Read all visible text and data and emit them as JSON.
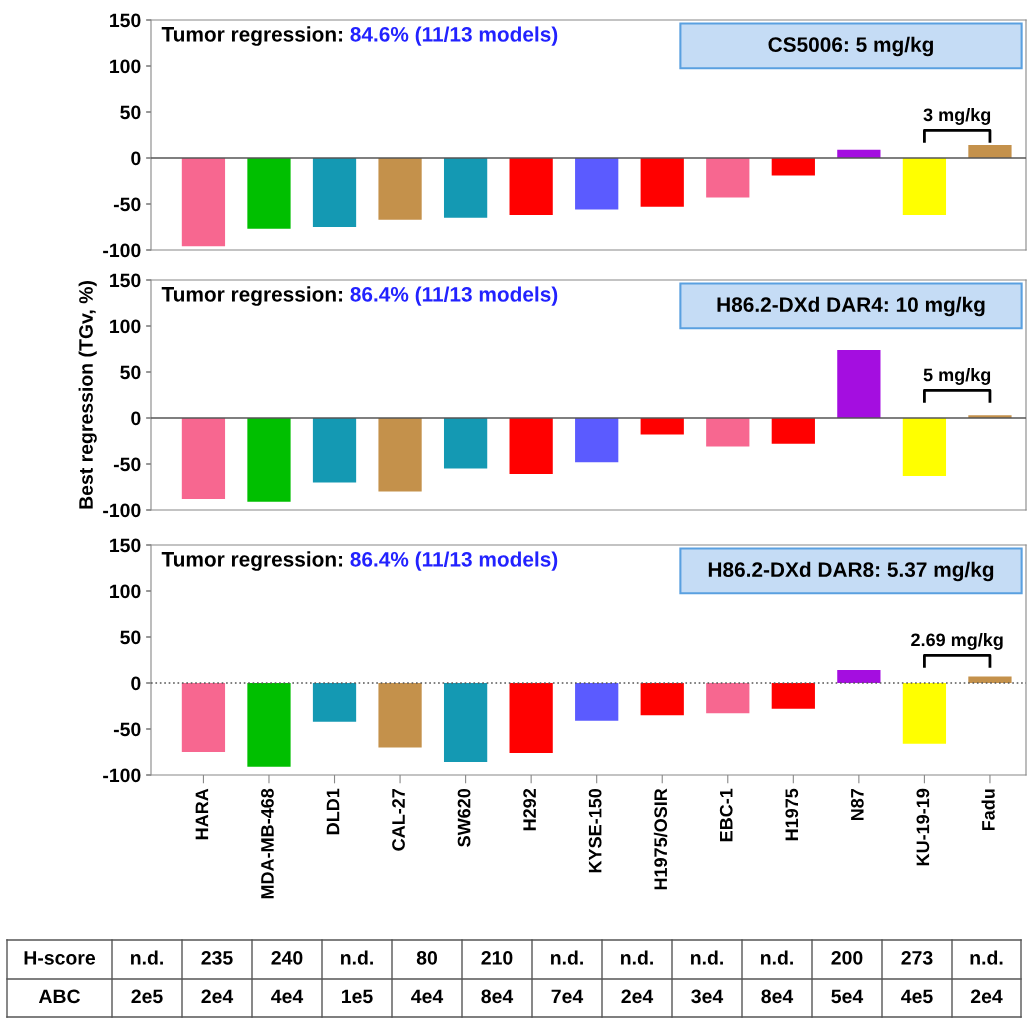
{
  "chart_data": [
    {
      "type": "bar",
      "categories": [
        null,
        null,
        null,
        null,
        null,
        null,
        null,
        null,
        null,
        null,
        null,
        null,
        null
      ],
      "values": [
        -96,
        -77,
        -75,
        -67,
        -65,
        -62,
        -56,
        -53,
        -43,
        -19,
        9,
        -62,
        14
      ],
      "colors": [
        "#f76790",
        "#00bf00",
        "#1499b3",
        "#c4914b",
        "#1499b3",
        "#ff0000",
        "#5b5bff",
        "#ff0000",
        "#f76790",
        "#ff0000",
        "#a40ee0",
        "#ffff00",
        "#c4914b"
      ],
      "ylim": [
        -100,
        150
      ],
      "yticks": [
        -100,
        -50,
        0,
        50,
        100,
        150
      ],
      "tick_labels": "y",
      "ref_lines": [
        {
          "axis": "y",
          "value": 0,
          "color": "#555555",
          "line_style": "solid"
        }
      ],
      "annotations": [
        "Tumor regression: 84.6% (11/13 models)",
        "CS5006: 5 mg/kg",
        "3 mg/kg"
      ]
    },
    {
      "type": "bar",
      "categories": [
        null,
        null,
        null,
        null,
        null,
        null,
        null,
        null,
        null,
        null,
        null,
        null,
        null
      ],
      "values": [
        -88,
        -91,
        -70,
        -80,
        -55,
        -61,
        -48,
        -18,
        -31,
        -28,
        74,
        -63,
        3
      ],
      "colors": [
        "#f76790",
        "#00bf00",
        "#1499b3",
        "#c4914b",
        "#1499b3",
        "#ff0000",
        "#5b5bff",
        "#ff0000",
        "#f76790",
        "#ff0000",
        "#a40ee0",
        "#ffff00",
        "#c4914b"
      ],
      "ylim": [
        -100,
        150
      ],
      "yticks": [
        -100,
        -50,
        0,
        50,
        100,
        150
      ],
      "tick_labels": "y",
      "ylabel": "Best regression (TGv, %)",
      "ref_lines": [
        {
          "axis": "y",
          "value": 0,
          "color": "#555555",
          "line_style": "solid"
        }
      ],
      "annotations": [
        "Tumor regression: 86.4% (11/13 models)",
        "H86.2-DXd DAR4: 10 mg/kg",
        "5 mg/kg"
      ]
    },
    {
      "type": "bar",
      "categories": [
        "HARA",
        "MDA-MB-468",
        "DLD1",
        "CAL-27",
        "SW620",
        "H292",
        "KYSE-150",
        "H1975/OSIR",
        "EBC-1",
        "H1975",
        "N87",
        "KU-19-19",
        "Fadu"
      ],
      "values": [
        -75,
        -91,
        -42,
        -70,
        -86,
        -76,
        -41,
        -35,
        -33,
        -28,
        14,
        -66,
        7
      ],
      "colors": [
        "#f76790",
        "#00bf00",
        "#1499b3",
        "#c4914b",
        "#1499b3",
        "#ff0000",
        "#5b5bff",
        "#ff0000",
        "#f76790",
        "#ff0000",
        "#a40ee0",
        "#ffff00",
        "#c4914b"
      ],
      "ylim": [
        -100,
        150
      ],
      "yticks": [
        -100,
        -50,
        0,
        50,
        100,
        150
      ],
      "ref_lines": [
        {
          "axis": "y",
          "value": 0,
          "color": "#555555",
          "line_style": "dotted"
        }
      ],
      "annotations": [
        "Tumor regression: 86.4% (11/13 models)",
        "H86.2-DXd DAR8: 5.37 mg/kg",
        "2.69 mg/kg",
        "H-score",
        "n.d.",
        "235",
        "240",
        "n.d.",
        "80",
        "210",
        "n.d.",
        "n.d.",
        "n.d.",
        "n.d.",
        "200",
        "273",
        "n.d.",
        "ABC",
        "2e5",
        "2e4",
        "4e4",
        "1e5",
        "4e4",
        "8e4",
        "7e4",
        "2e4",
        "3e4",
        "8e4",
        "5e4",
        "4e5",
        "2e4"
      ]
    }
  ]
}
